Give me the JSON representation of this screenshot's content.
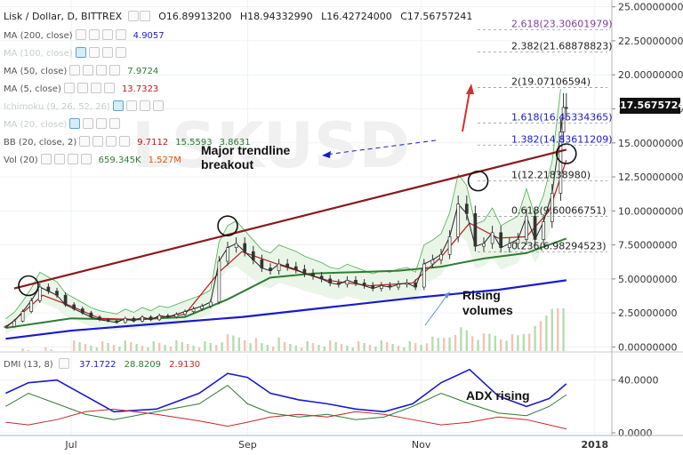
{
  "header": {
    "title": "Lisk / Dollar, D, BITTREX",
    "open": "O16.89913200",
    "high": "H18.94332990",
    "low": "L16.42724000",
    "close": "C17.56757241"
  },
  "legend": [
    {
      "label": "MA (200, close)",
      "values": [
        "4.9057"
      ],
      "colors": [
        "#1a1acc"
      ]
    },
    {
      "label": "MA (100, close)",
      "values": [],
      "colors": [],
      "faded": true
    },
    {
      "label": "MA (50, close)",
      "values": [
        "7.9724"
      ],
      "colors": [
        "#2e7d32"
      ]
    },
    {
      "label": "MA (5, close)",
      "values": [
        "13.7323"
      ],
      "colors": [
        "#b71c1c"
      ]
    },
    {
      "label": "Ichimoku (9, 26, 52, 26)",
      "values": [],
      "colors": [],
      "faded": true
    },
    {
      "label": "MA (20, close)",
      "values": [],
      "colors": [],
      "faded": true
    },
    {
      "label": "BB (20, close, 2)",
      "values": [
        "9.7112",
        "15.5593",
        "3.8631"
      ],
      "colors": [
        "#b71c1c",
        "#2e7d32",
        "#2e7d32"
      ]
    },
    {
      "label": "Vol (20)",
      "values": [
        "659.345K",
        "1.527M"
      ],
      "colors": [
        "#2e7d32",
        "#e65100"
      ]
    }
  ],
  "dmi_legend": {
    "label": "DMI (13, 8)",
    "values": [
      "37.1722",
      "28.8209",
      "2.9130"
    ],
    "colors": [
      "#1a1acc",
      "#2e7d32",
      "#c62828"
    ]
  },
  "price_tag": "17.56757241",
  "watermark": "LSKUSD",
  "annotations": {
    "breakout_1": "Major trendline",
    "breakout_2": "breakout",
    "volumes_1": "Rising",
    "volumes_2": "volumes",
    "adx": "ADX rising"
  },
  "fib_levels": [
    {
      "label": "2.618(23.30601979)",
      "value": 23.306,
      "color": "#7b3fa0"
    },
    {
      "label": "2.382(21.68878823)",
      "value": 21.689,
      "color": "#222222"
    },
    {
      "label": "2(19.07106594)",
      "value": 19.071,
      "color": "#222222"
    },
    {
      "label": "1.618(16.45334365)",
      "value": 16.453,
      "color": "#1a1acc"
    },
    {
      "label": "1.382(14.83611209)",
      "value": 14.836,
      "color": "#1a1acc"
    },
    {
      "label": "1(12.21838980)",
      "value": 12.218,
      "color": "#222222"
    },
    {
      "label": "0.618(9.60066751)",
      "value": 9.601,
      "color": "#222222"
    },
    {
      "label": "0.236(6.98294523)",
      "value": 6.983,
      "color": "#222222"
    }
  ],
  "chart_data": [
    {
      "type": "line",
      "panel": "price",
      "y_axis_ticks": [
        "25.00000000",
        "22.50000000",
        "20.00000000",
        "17.50000000",
        "15.00000000",
        "12.50000000",
        "10.00000000",
        "7.50000000",
        "5.00000000",
        "2.50000000",
        "0.00000000"
      ],
      "y_tick_values": [
        25,
        22.5,
        20,
        17.5,
        15,
        12.5,
        10,
        7.5,
        5,
        2.5,
        0
      ],
      "ylim": [
        -0.3,
        25.5
      ],
      "x_axis_ticks": [
        "Jul",
        "Sep",
        "Nov",
        "2018"
      ],
      "x_tick_days": [
        0,
        62,
        123,
        184
      ],
      "xlim": [
        -25,
        190
      ],
      "close_series": {
        "name": "Close",
        "x": [
          -23,
          -20,
          -17,
          -14,
          -11,
          -8,
          -5,
          -2,
          1,
          4,
          7,
          10,
          13,
          16,
          19,
          22,
          25,
          28,
          31,
          34,
          37,
          40,
          43,
          46,
          49,
          52,
          55,
          58,
          61,
          64,
          67,
          70,
          73,
          76,
          79,
          82,
          85,
          88,
          91,
          94,
          97,
          100,
          103,
          106,
          109,
          112,
          115,
          118,
          121,
          124,
          127,
          130,
          133,
          136,
          139,
          142,
          145,
          148,
          151,
          154,
          157,
          160,
          163,
          166,
          169,
          172,
          173,
          174
        ],
        "y": [
          1.5,
          1.9,
          2.6,
          3.4,
          4.4,
          4.1,
          3.8,
          3.1,
          2.8,
          2.5,
          2.2,
          2.0,
          1.9,
          1.8,
          2.1,
          1.9,
          2.2,
          2.0,
          2.3,
          2.2,
          2.4,
          2.6,
          2.8,
          3.0,
          3.3,
          6.3,
          7.3,
          7.6,
          7.0,
          6.4,
          5.8,
          5.6,
          6.1,
          5.9,
          5.7,
          5.4,
          5.2,
          5.0,
          4.7,
          4.6,
          4.9,
          4.7,
          4.5,
          4.3,
          4.5,
          4.4,
          4.6,
          4.7,
          4.4,
          6.1,
          6.4,
          6.8,
          8.1,
          10.5,
          9.8,
          7.4,
          7.6,
          8.4,
          7.3,
          7.6,
          7.9,
          9.6,
          7.9,
          9.2,
          11.3,
          15.8,
          17.6,
          17.57
        ]
      },
      "ma_series": [
        {
          "name": "MA (200, close)",
          "color": "#1a1acc",
          "x": [
            -23,
            0,
            30,
            60,
            90,
            120,
            150,
            174
          ],
          "y": [
            0.6,
            1.2,
            1.7,
            2.2,
            2.9,
            3.6,
            4.2,
            4.9
          ]
        },
        {
          "name": "MA (50, close)",
          "color": "#2e7d32",
          "x": [
            -23,
            0,
            20,
            40,
            55,
            70,
            85,
            100,
            115,
            130,
            145,
            160,
            174
          ],
          "y": [
            1.4,
            2.1,
            2.0,
            2.2,
            3.5,
            5.1,
            5.4,
            5.5,
            5.6,
            5.9,
            6.5,
            6.9,
            7.97
          ]
        },
        {
          "name": "MA (5, close)",
          "color": "#b71c1c",
          "x": [
            -23,
            -10,
            0,
            10,
            25,
            40,
            52,
            60,
            75,
            90,
            105,
            120,
            130,
            140,
            150,
            160,
            168,
            174
          ],
          "y": [
            1.4,
            3.8,
            3.0,
            2.1,
            2.0,
            2.4,
            5.5,
            7.0,
            5.9,
            4.9,
            4.5,
            4.7,
            6.6,
            9.1,
            8.0,
            8.1,
            10.0,
            13.73
          ]
        }
      ],
      "trendline": {
        "x": [
          -20,
          174
        ],
        "y": [
          4.3,
          14.5
        ]
      }
    },
    {
      "type": "line",
      "panel": "dmi",
      "y_axis_ticks": [
        "40.0000",
        "0.0000"
      ],
      "y_tick_values": [
        40,
        0
      ],
      "ylim": [
        -2,
        60
      ],
      "series": [
        {
          "name": "ADX",
          "color": "#1a1acc",
          "x": [
            -23,
            -15,
            -5,
            5,
            15,
            30,
            45,
            55,
            62,
            70,
            80,
            90,
            100,
            110,
            120,
            130,
            140,
            150,
            160,
            168,
            174
          ],
          "y": [
            30,
            38,
            40,
            28,
            16,
            18,
            30,
            45,
            42,
            30,
            25,
            22,
            18,
            16,
            22,
            38,
            48,
            28,
            20,
            26,
            37.17
          ]
        },
        {
          "name": "+DI",
          "color": "#2e7d32",
          "x": [
            -23,
            -15,
            -5,
            5,
            15,
            30,
            45,
            55,
            62,
            70,
            80,
            90,
            100,
            110,
            120,
            130,
            140,
            150,
            160,
            168,
            174
          ],
          "y": [
            20,
            30,
            22,
            14,
            10,
            16,
            22,
            36,
            22,
            15,
            12,
            14,
            10,
            12,
            20,
            30,
            22,
            15,
            13,
            20,
            28.82
          ]
        },
        {
          "name": "-DI",
          "color": "#c62828",
          "x": [
            -23,
            -15,
            -5,
            5,
            15,
            30,
            45,
            55,
            62,
            70,
            80,
            90,
            100,
            110,
            120,
            130,
            140,
            150,
            160,
            168,
            174
          ],
          "y": [
            8,
            6,
            10,
            16,
            18,
            14,
            9,
            5,
            8,
            12,
            14,
            12,
            16,
            14,
            10,
            6,
            8,
            12,
            10,
            6,
            2.91
          ]
        }
      ]
    }
  ]
}
